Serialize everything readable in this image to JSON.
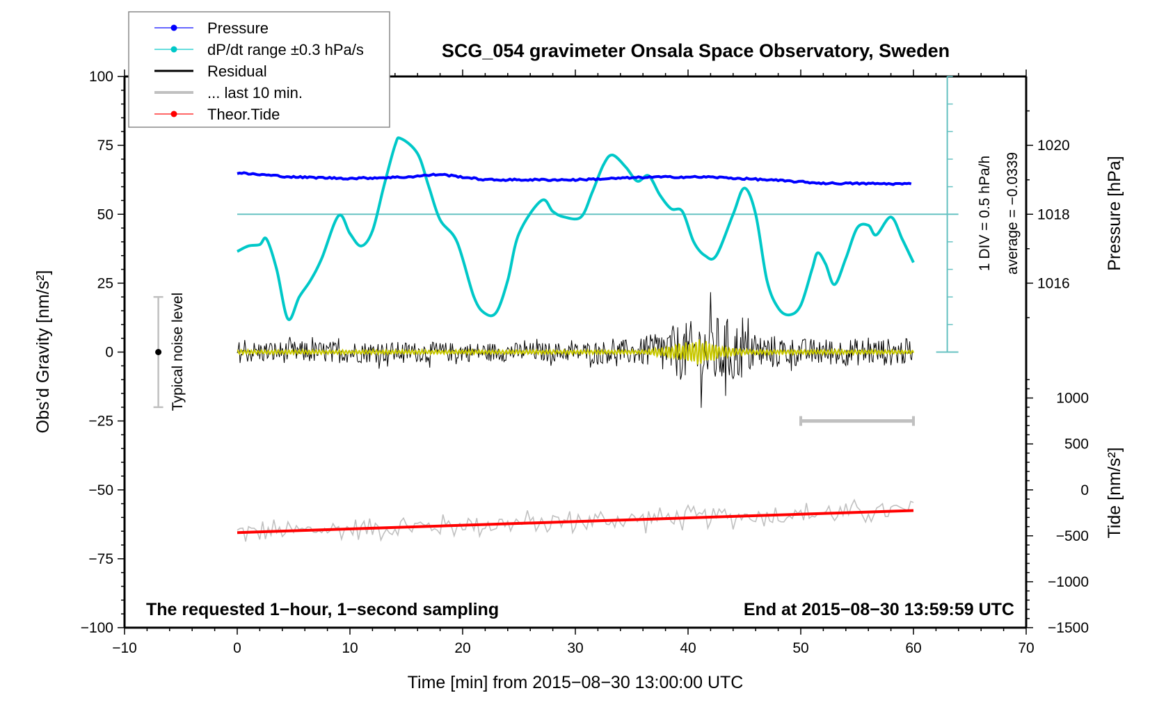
{
  "chart_data": {
    "type": "line",
    "title": "SCG_054 gravimeter Onsala Space Observatory, Sweden",
    "xlabel": "Time [min] from 2015−08−30 13:00:00 UTC",
    "ylabel_left": "Obs’d Gravity [nm/s²]",
    "ylabel_right_pressure": "Pressure [hPa]",
    "ylabel_right_tide": "Tide [nm/s²]",
    "xlim": [
      -10,
      70
    ],
    "ylim": [
      -100,
      100
    ],
    "x_ticks": [
      -10,
      0,
      10,
      20,
      30,
      40,
      50,
      60,
      70
    ],
    "x_tick_labels": [
      "−10",
      "0",
      "10",
      "20",
      "30",
      "40",
      "50",
      "60",
      "70"
    ],
    "y_ticks": [
      100,
      75,
      50,
      25,
      0,
      -25,
      -50,
      -75,
      -100
    ],
    "y_tick_labels": [
      "100",
      "75",
      "50",
      "25",
      "0",
      "−25",
      "−50",
      "−75",
      "−100"
    ],
    "pressure_axis": {
      "ticks": [
        1020,
        1018,
        1016
      ],
      "tick_labels": [
        "1020",
        "1018",
        "1016"
      ],
      "gravity_at_1018": 50,
      "hpa_per_gravity_unit": 0.08
    },
    "tide_axis": {
      "ticks": [
        1000,
        500,
        0,
        -500,
        -1000,
        -1500
      ],
      "tick_labels": [
        "1000",
        "500",
        "0",
        "−500",
        "−1000",
        "−1500"
      ],
      "gravity_at_zero": -50,
      "tide_per_gravity_unit": 30
    },
    "legend": {
      "placement": "top-left",
      "entries": [
        {
          "label": "Pressure",
          "color": "#0000ff",
          "marker": true
        },
        {
          "label": "dP/dt range ±0.3 hPa/s",
          "color": "#00c8c8",
          "marker": true
        },
        {
          "label": "Residual",
          "color": "#000000",
          "marker": false
        },
        {
          "label": "... last 10 min.",
          "color": "#c0c0c0",
          "marker": false
        },
        {
          "label": "Theor.Tide",
          "color": "#ff0000",
          "marker": true
        }
      ]
    },
    "annotations": {
      "left_bottom": "The requested 1−hour, 1−second sampling",
      "right_bottom": "End at 2015−08−30 13:59:59 UTC",
      "dpdt_div": "1 DIV = 0.5 hPa/h",
      "dpdt_average": "average = −0.0339",
      "noise_label": "Typical noise level"
    },
    "noise_bar": {
      "x": -7,
      "center": 0,
      "low": -20,
      "high": 20
    },
    "last10_bar": {
      "x_from": 50,
      "x_to": 60,
      "y": -25
    },
    "dpdt_scale": {
      "x": 63,
      "y_from": 0,
      "y_to": 100,
      "center": 50,
      "divisions": 10
    },
    "series": [
      {
        "name": "Pressure",
        "unit": "hPa",
        "color": "#0000ff",
        "x": [
          0,
          5,
          10,
          15,
          18,
          22,
          30,
          37,
          42,
          47,
          52,
          60
        ],
        "values": [
          1019.2,
          1019.08,
          1019.04,
          1019.08,
          1019.16,
          1019.0,
          1019.0,
          1019.08,
          1019.08,
          1019.0,
          1018.9,
          1018.88
        ]
      },
      {
        "name": "dP/dt",
        "unit": "plot units",
        "color": "#00c8c8",
        "x": [
          0,
          1,
          2,
          2.6,
          3.5,
          4.5,
          5.5,
          6.5,
          7.5,
          9,
          10,
          11,
          12,
          13,
          14,
          14.5,
          16,
          17,
          18,
          19.5,
          21,
          22,
          23,
          24,
          25,
          27,
          28,
          29,
          30.5,
          31.5,
          32.5,
          33.3,
          34.5,
          35.5,
          36.5,
          37.5,
          38.5,
          39.5,
          40.5,
          41.5,
          42.5,
          44,
          45,
          46,
          47,
          48,
          49,
          50,
          51,
          51.5,
          52.2,
          53,
          54,
          55,
          56,
          56.7,
          58,
          59,
          60
        ],
        "values": [
          36.5,
          38.5,
          39,
          41,
          30,
          12,
          20,
          26,
          34,
          49.5,
          43,
          38.5,
          44,
          60,
          75,
          77.5,
          72,
          60,
          48,
          40,
          20,
          14,
          14.5,
          26,
          43,
          55,
          51,
          49,
          49,
          58,
          68,
          71.5,
          67,
          62,
          64,
          57,
          52,
          51,
          40,
          35,
          35,
          50,
          59.5,
          50,
          26,
          16,
          13.5,
          17,
          30,
          36,
          32,
          24.5,
          34,
          45,
          46,
          42.5,
          49,
          41,
          32.5
        ]
      },
      {
        "name": "Residual",
        "unit": "nm/s²",
        "color": "#000000",
        "x_range": [
          0,
          60
        ],
        "baseline": 0,
        "envelope_x": [
          0,
          10,
          20,
          30,
          36,
          38,
          40,
          42,
          44,
          46,
          50,
          60
        ],
        "envelope_amp": [
          4,
          4,
          3.5,
          3.5,
          5,
          9,
          11,
          14,
          12,
          7,
          5,
          5
        ]
      },
      {
        "name": "Residual (smoothed)",
        "unit": "nm/s²",
        "color": "#c8c800",
        "x_range": [
          0,
          60
        ],
        "envelope_x": [
          0,
          36,
          38,
          40,
          41,
          42,
          43,
          45,
          60
        ],
        "envelope_amp": [
          0.8,
          0.8,
          2,
          4,
          5,
          4,
          2,
          1,
          0.8
        ]
      },
      {
        "name": "... last 10 min.",
        "unit": "nm/s²",
        "color": "#c0c0c0",
        "x_range": [
          0,
          60
        ],
        "amplitude": 4
      },
      {
        "name": "Theor.Tide",
        "unit": "nm/s²",
        "color": "#ff0000",
        "x": [
          0,
          60
        ],
        "values": [
          -465,
          -225
        ]
      }
    ]
  }
}
